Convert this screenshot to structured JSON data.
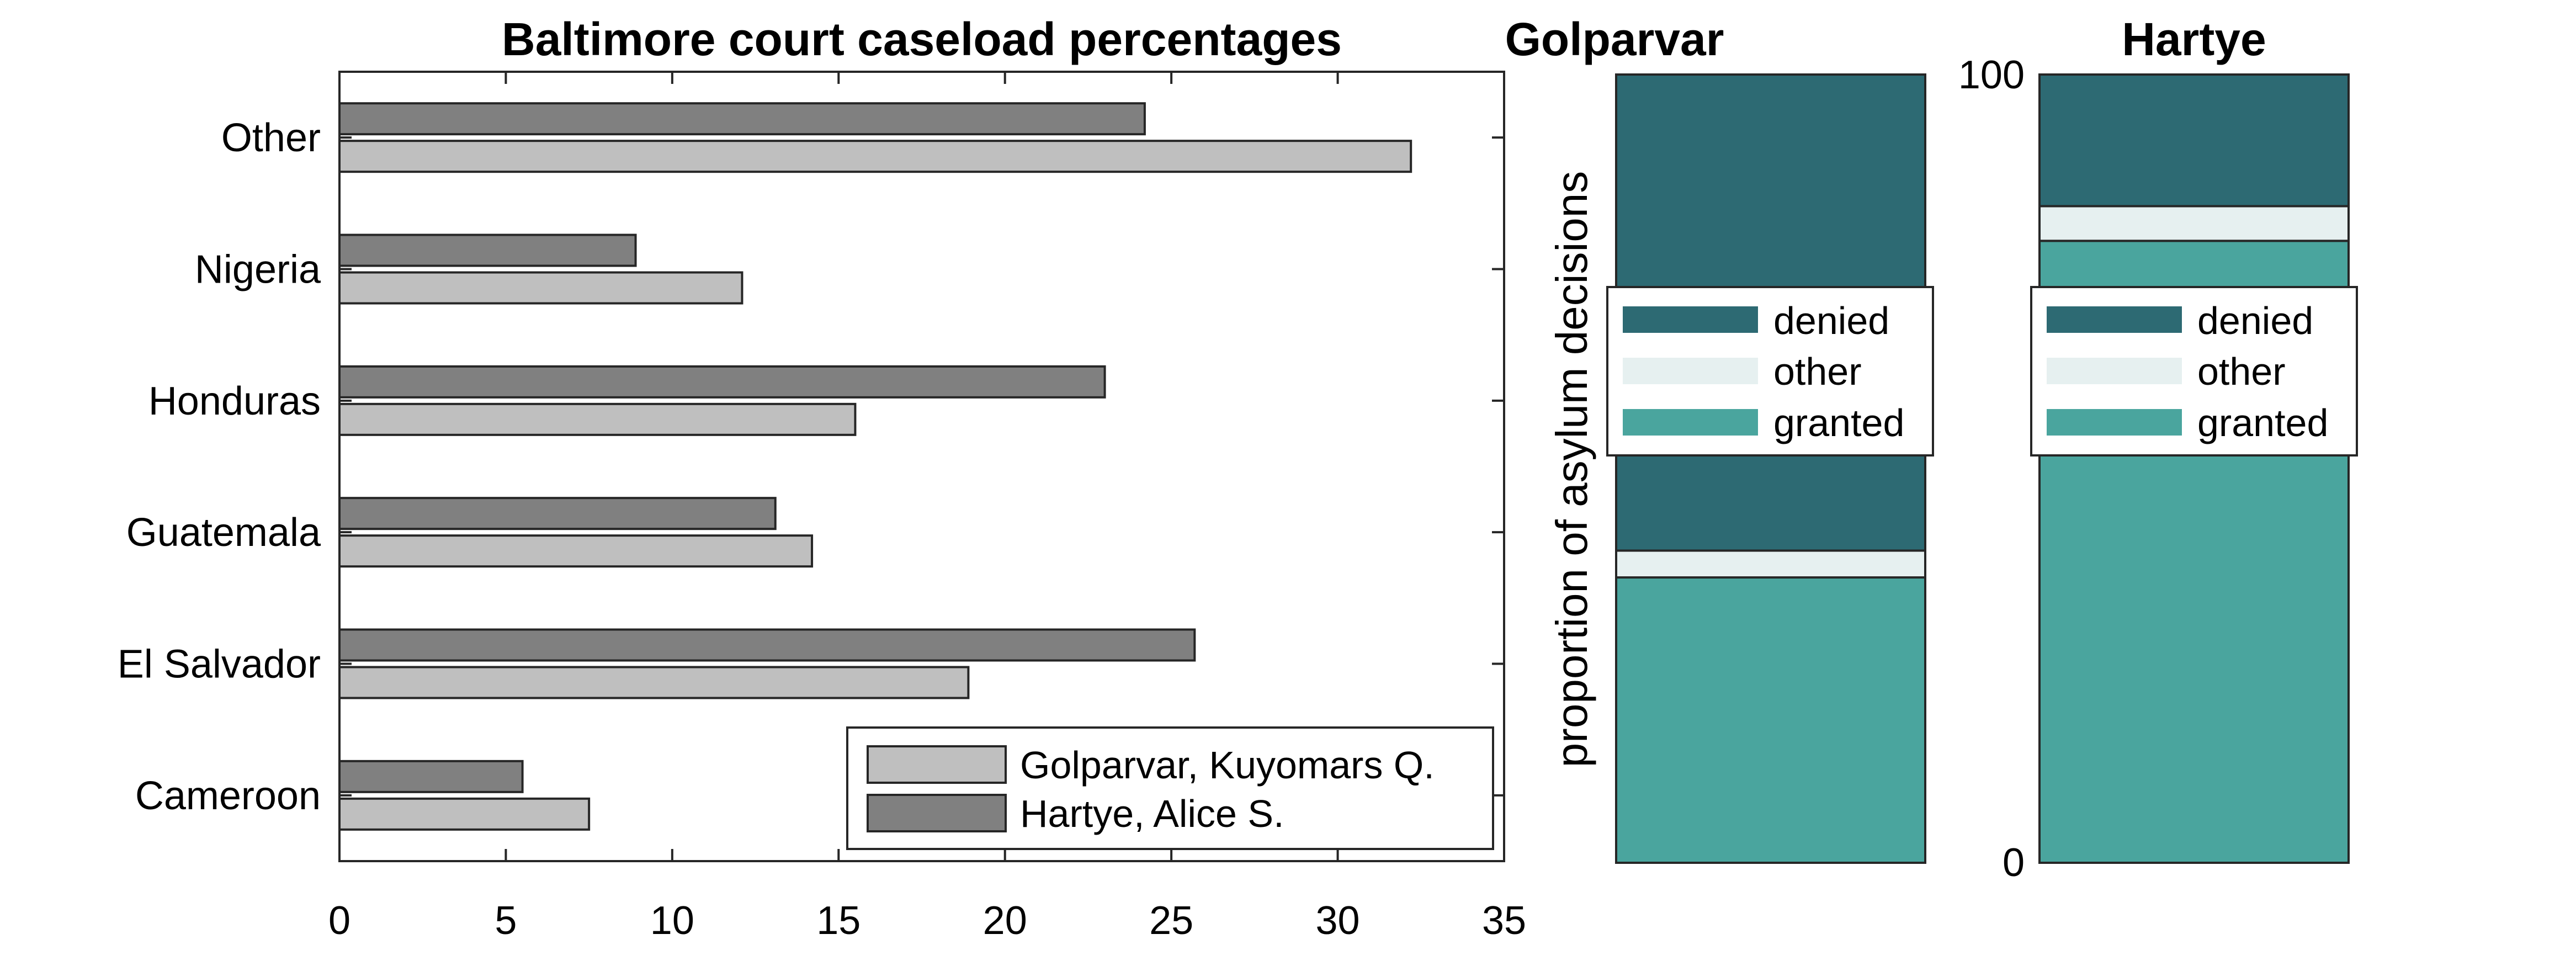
{
  "chart_data": [
    {
      "type": "bar",
      "orientation": "horizontal",
      "title": "Baltimore court caseload percentages",
      "categories": [
        "Other",
        "Nigeria",
        "Honduras",
        "Guatemala",
        "El Salvador",
        "Cameroon"
      ],
      "series": [
        {
          "name": "Golparvar, Kuyomars Q.",
          "color": "#bfbfbf",
          "values": [
            32.2,
            12.1,
            15.5,
            14.2,
            18.9,
            7.5
          ]
        },
        {
          "name": "Hartye, Alice S.",
          "color": "#808080",
          "values": [
            24.2,
            8.9,
            23.0,
            13.1,
            25.7,
            5.5
          ]
        }
      ],
      "xlim": [
        0,
        35
      ],
      "xticks": [
        "0",
        "5",
        "10",
        "15",
        "20",
        "25",
        "30",
        "35"
      ],
      "grid": false,
      "legend_position": "bottom-right"
    },
    {
      "type": "bar",
      "stacked": true,
      "title": "Golparvar",
      "ylabel": "proportion of asylum decisions",
      "ylim": [
        0,
        100
      ],
      "segments": [
        {
          "name": "granted",
          "color": "#4aa59e",
          "value": 36.2
        },
        {
          "name": "other",
          "color": "#e6f0f0",
          "value": 3.4
        },
        {
          "name": "denied",
          "color": "#2d6a73",
          "value": 60.4
        }
      ],
      "legend_position": "center",
      "legend_order": [
        "denied",
        "other",
        "granted"
      ]
    },
    {
      "type": "bar",
      "stacked": true,
      "title": "Hartye",
      "ylim": [
        0,
        100
      ],
      "yticks": [
        "0",
        "100"
      ],
      "segments": [
        {
          "name": "granted",
          "color": "#4aa59e",
          "value": 78.9
        },
        {
          "name": "other",
          "color": "#e6f0f0",
          "value": 4.4
        },
        {
          "name": "denied",
          "color": "#2d6a73",
          "value": 16.7
        }
      ],
      "legend_position": "center",
      "legend_order": [
        "denied",
        "other",
        "granted"
      ]
    }
  ]
}
